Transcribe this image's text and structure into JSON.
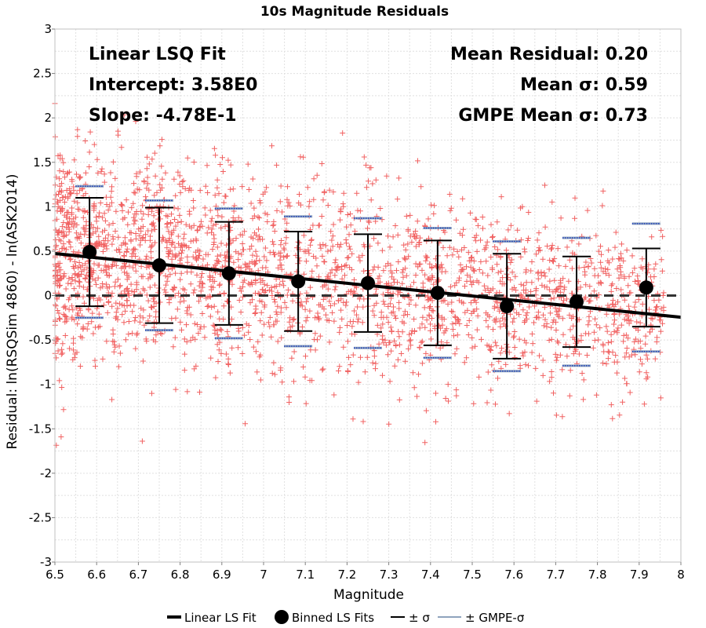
{
  "chart_data": {
    "type": "scatter",
    "title": "10s Magnitude Residuals",
    "xlabel": "Magnitude",
    "ylabel": "Residual: ln(RSQSim 4860) - ln(ASK2014)",
    "xlim": [
      6.5,
      8
    ],
    "ylim": [
      -3,
      3
    ],
    "x_ticks": [
      "6.5",
      "6.6",
      "6.7",
      "6.8",
      "6.9",
      "7",
      "7.1",
      "7.2",
      "7.3",
      "7.4",
      "7.5",
      "7.6",
      "7.7",
      "7.8",
      "7.9",
      "8"
    ],
    "y_ticks": [
      "-3",
      "-2.5",
      "-2",
      "-1.5",
      "-1",
      "-0.5",
      "0",
      "0.5",
      "1",
      "1.5",
      "2",
      "2.5",
      "3"
    ],
    "grid": true,
    "annotations": {
      "fit_name": "Linear LSQ Fit",
      "intercept": "Intercept: 3.58E0",
      "slope": "Slope: -4.78E-1",
      "mean_residual": "Mean Residual: 0.20",
      "mean_sigma": "Mean σ: 0.59",
      "gmpe_mean_sigma": "GMPE Mean σ: 0.73"
    },
    "linear_fit": {
      "intercept": 3.58,
      "slope": -0.478
    },
    "zero_line": 0,
    "binned_fits": [
      {
        "x": 6.583,
        "mean": 0.49,
        "sigma": 0.61,
        "gmpe_sigma": 0.74
      },
      {
        "x": 6.75,
        "mean": 0.34,
        "sigma": 0.65,
        "gmpe_sigma": 0.73
      },
      {
        "x": 6.917,
        "mean": 0.25,
        "sigma": 0.58,
        "gmpe_sigma": 0.73
      },
      {
        "x": 7.083,
        "mean": 0.16,
        "sigma": 0.56,
        "gmpe_sigma": 0.73
      },
      {
        "x": 7.25,
        "mean": 0.14,
        "sigma": 0.55,
        "gmpe_sigma": 0.73
      },
      {
        "x": 7.417,
        "mean": 0.03,
        "sigma": 0.59,
        "gmpe_sigma": 0.73
      },
      {
        "x": 7.583,
        "mean": -0.12,
        "sigma": 0.59,
        "gmpe_sigma": 0.73
      },
      {
        "x": 7.75,
        "mean": -0.07,
        "sigma": 0.51,
        "gmpe_sigma": 0.72
      },
      {
        "x": 7.917,
        "mean": 0.09,
        "sigma": 0.44,
        "gmpe_sigma": 0.72
      }
    ],
    "scatter_style": {
      "color": "#f05050",
      "marker": "+"
    },
    "legend": {
      "placement": "bottom",
      "entries": [
        "Linear LS Fit",
        "Binned LS Fits",
        "± σ",
        "± GMPE-σ"
      ]
    },
    "colors": {
      "scatter": "#f05050",
      "fit_line": "#000000",
      "gmpe_sigma": "#8fa3bd",
      "gmpe_sigma_dots": "#1f3fbf",
      "grid": "#e0e0e0"
    }
  }
}
